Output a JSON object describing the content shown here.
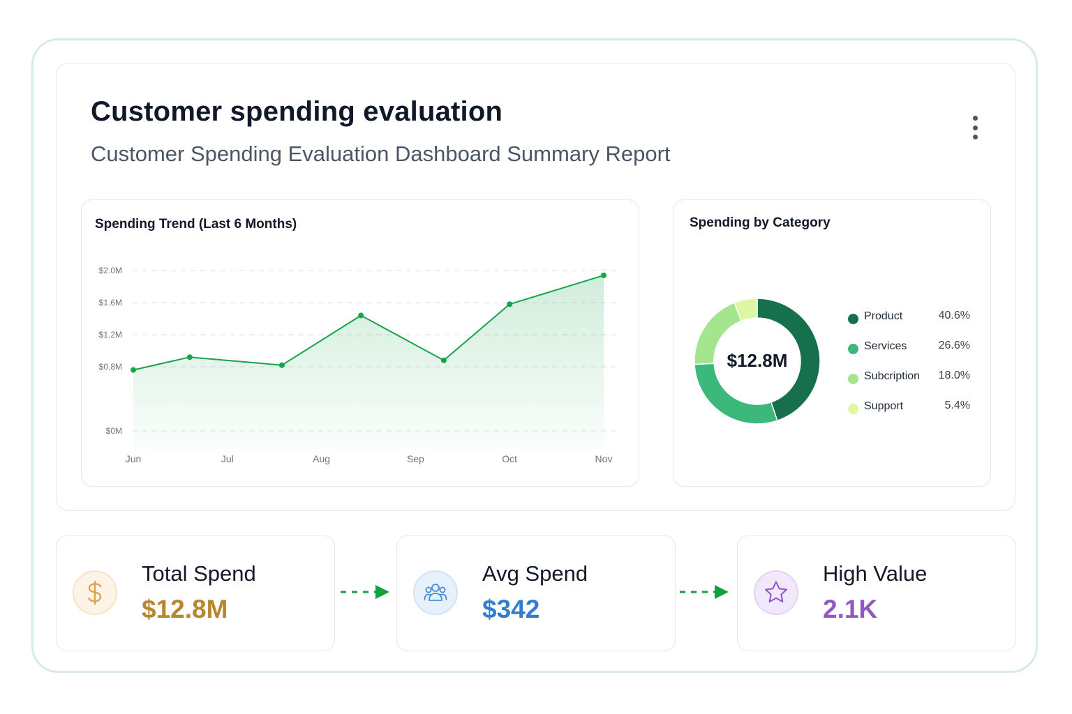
{
  "header": {
    "title": "Customer spending evaluation",
    "subtitle": "Customer Spending Evaluation Dashboard Summary Report"
  },
  "trend": {
    "title": "Spending Trend (Last 6 Months)"
  },
  "category": {
    "title": "Spending by Category",
    "total": "$12.8M"
  },
  "chart_data": [
    {
      "type": "area",
      "title": "Spending Trend (Last 6 Months)",
      "categories": [
        "Jun",
        "Jul",
        "Aug",
        "Sep",
        "Oct",
        "Nov"
      ],
      "y_ticks": [
        "$2.0M",
        "$1.6M",
        "$1.2M",
        "$0.8M",
        "$0M"
      ],
      "ylim": [
        0,
        2.0
      ],
      "y_unit": "$M",
      "x": [
        0,
        0.6,
        1.58,
        2.42,
        3.3,
        4.0,
        5.0
      ],
      "y": [
        0.76,
        0.92,
        0.82,
        1.44,
        0.88,
        1.58,
        1.94
      ],
      "color": "#16a34a",
      "grid": true
    },
    {
      "type": "pie",
      "title": "Spending by Category",
      "labels": [
        "Product",
        "Services",
        "Subcription",
        "Support"
      ],
      "values": [
        40.6,
        26.6,
        18.0,
        5.4
      ],
      "value_labels": [
        "40.6%",
        "26.6%",
        "18.0%",
        "5.4%"
      ],
      "colors": [
        "#15704b",
        "#3bb87a",
        "#a6e58f",
        "#def7a1"
      ],
      "center_label": "$12.8M"
    }
  ],
  "stats": [
    {
      "label": "Total Spend",
      "value": "$12.8M",
      "icon": "dollar-icon",
      "color": "#b8862e",
      "icon_color": "#e3a04d",
      "icon_bg": "#fdf3e6",
      "icon_border": "#f8e3c8"
    },
    {
      "label": "Avg Spend",
      "value": "$342",
      "icon": "users-icon",
      "color": "#2f7fce",
      "icon_color": "#4a8dd6",
      "icon_bg": "#e6f1fc",
      "icon_border": "#cfe2f6"
    },
    {
      "label": "High Value",
      "value": "2.1K",
      "icon": "star-icon",
      "color": "#9058c4",
      "icon_color": "#8c55c8",
      "icon_bg": "#f1e8fb",
      "icon_border": "#e3d3f4"
    }
  ],
  "arrow_color": "#14a03c"
}
